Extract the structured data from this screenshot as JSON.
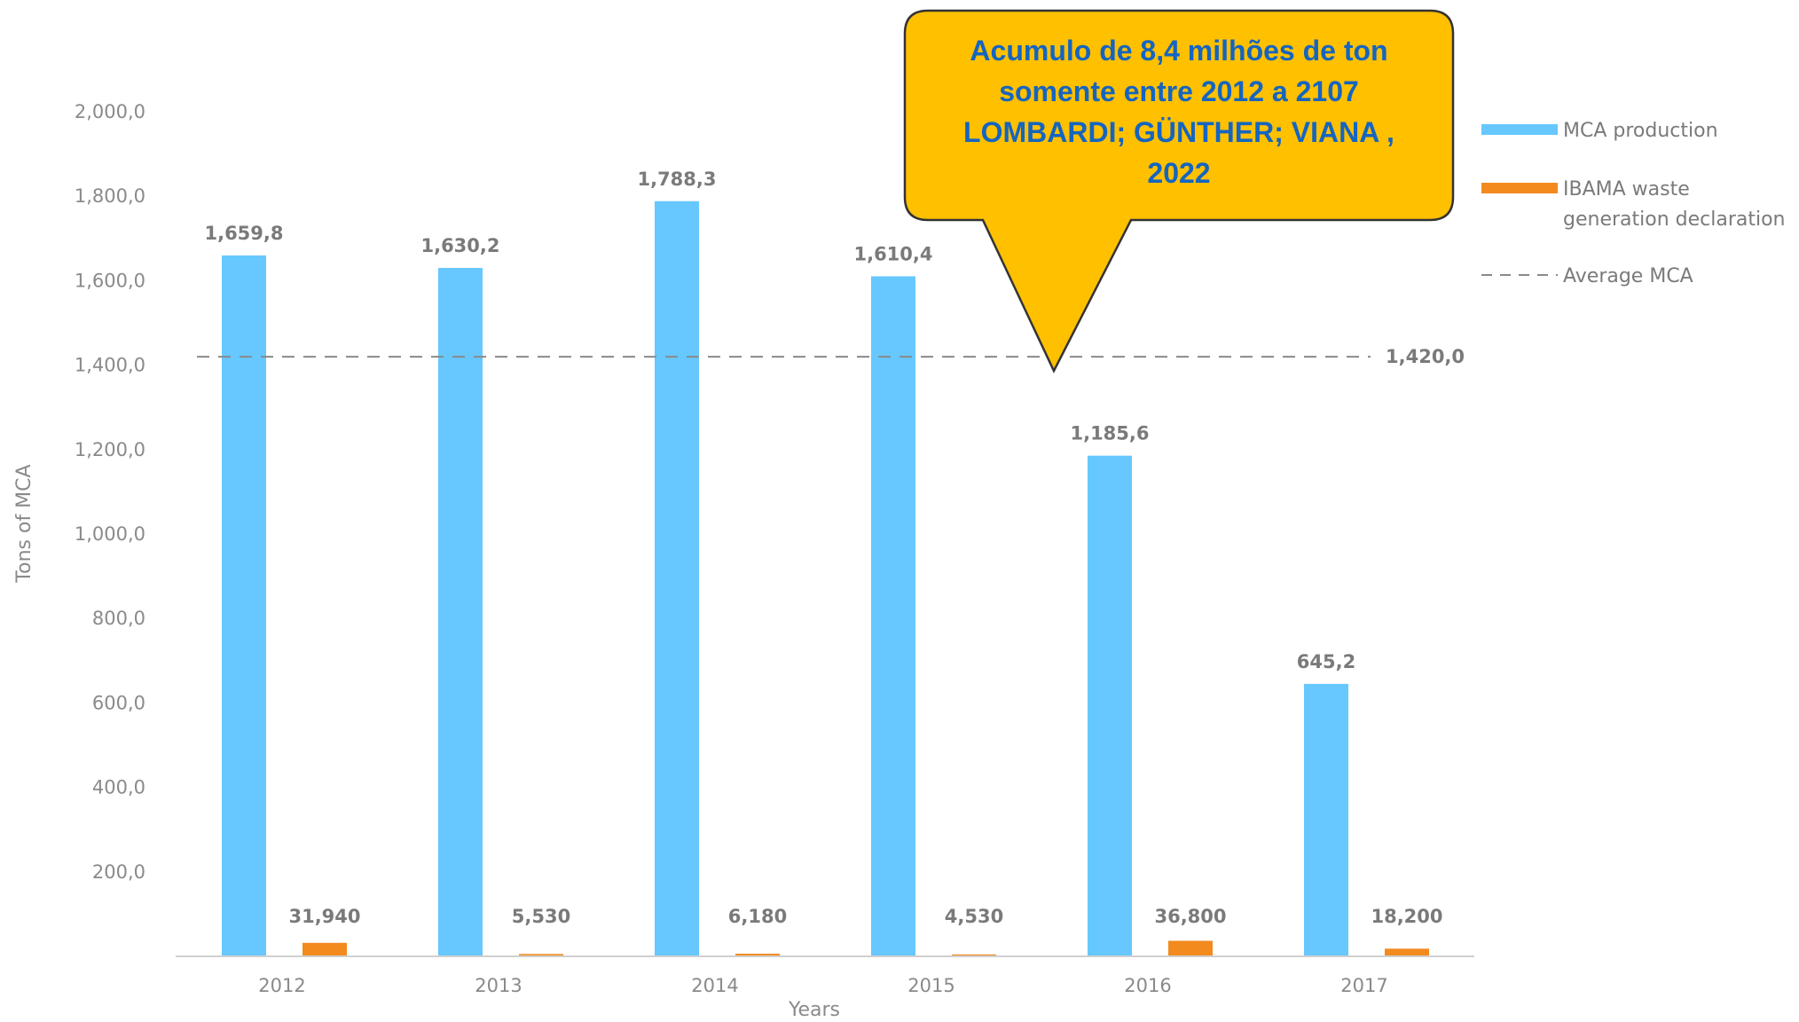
{
  "chart_data": {
    "type": "bar",
    "categories": [
      "2012",
      "2013",
      "2014",
      "2015",
      "2016",
      "2017"
    ],
    "series": [
      {
        "name": "MCA production",
        "values": [
          1659.8,
          1630.2,
          1788.3,
          1610.4,
          1185.6,
          645.2
        ],
        "labels": [
          "1,659,8",
          "1,630,2",
          "1,788,3",
          "1,610,4",
          "1,185,6",
          "645,2"
        ],
        "color": "#66c8ff"
      },
      {
        "name": "IBAMA waste generation declaration",
        "values": [
          31.94,
          5.53,
          6.18,
          4.53,
          36.8,
          18.2
        ],
        "labels": [
          "31,940",
          "5,530",
          "6,180",
          "4,530",
          "36,800",
          "18,200"
        ],
        "color": "#f28a1e"
      }
    ],
    "reference_line": {
      "name": "Average MCA",
      "value": 1420.0,
      "label": "1,420,0",
      "color": "#8a8a8a",
      "style": "dashed"
    },
    "yticks": [
      200,
      400,
      600,
      800,
      1000,
      1200,
      1400,
      1600,
      1800,
      2000
    ],
    "ytick_labels": [
      "200,0",
      "400,0",
      "600,0",
      "800,0",
      "1,000,0",
      "1,200,0",
      "1,400,0",
      "1,600,0",
      "1,800,0",
      "2,000,0"
    ],
    "ylim": [
      0,
      2000
    ],
    "xlabel": "Years",
    "ylabel": "Tons of  MCA",
    "legend_position": "right",
    "grid": false
  },
  "callout": {
    "lines": [
      "Acumulo de 8,4 milhões de ton",
      "somente entre 2012 a 2107",
      "LOMBARDI; GÜNTHER; VIANA ,",
      "2022"
    ],
    "fill": "#ffc000",
    "text_color": "#1565c0"
  },
  "legend": {
    "items": [
      {
        "lines": [
          "MCA production"
        ],
        "color": "#66c8ff",
        "kind": "bar"
      },
      {
        "lines": [
          "IBAMA waste",
          "generation declaration"
        ],
        "color": "#f28a1e",
        "kind": "bar"
      },
      {
        "lines": [
          "Average MCA"
        ],
        "color": "#8a8a8a",
        "kind": "dash"
      }
    ]
  }
}
